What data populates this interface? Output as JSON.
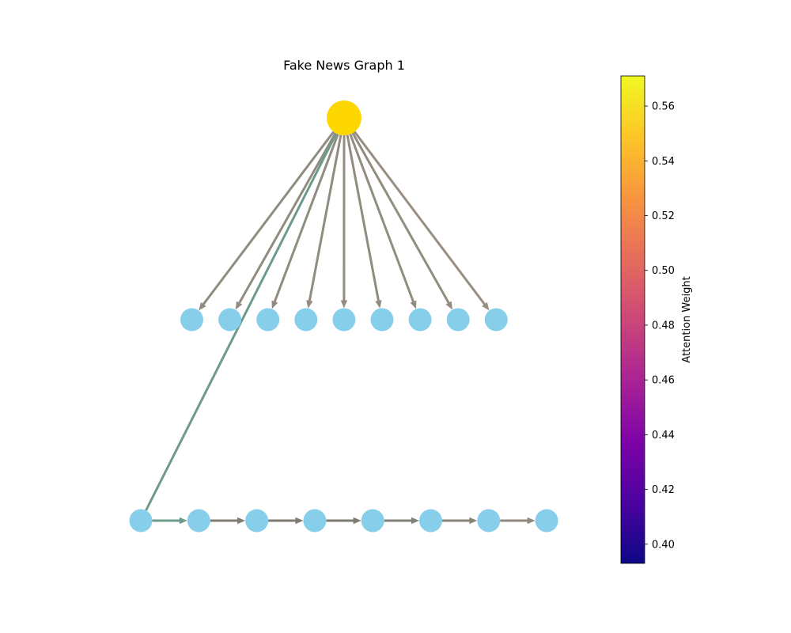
{
  "title": "Fake News Graph 1",
  "colorbar": {
    "label": "Attention Weight",
    "min": 0.393,
    "max": 0.571,
    "ticks": [
      "0.40",
      "0.42",
      "0.44",
      "0.46",
      "0.48",
      "0.50",
      "0.52",
      "0.54",
      "0.56"
    ],
    "tick_values": [
      0.4,
      0.42,
      0.44,
      0.46,
      0.48,
      0.5,
      0.52,
      0.54,
      0.56
    ],
    "colormap": "plasma"
  },
  "colors": {
    "root_node": "#FFD700",
    "child_node": "#87CEEB",
    "edge_gray": "#8c8577",
    "edge_green": "#6c9a8b"
  },
  "graph": {
    "root": "r",
    "middle_nodes": [
      "m1",
      "m2",
      "m3",
      "m4",
      "m5",
      "m6",
      "m7",
      "m8",
      "m9"
    ],
    "chain_nodes": [
      "c1",
      "c2",
      "c3",
      "c4",
      "c5",
      "c6",
      "c7",
      "c8"
    ],
    "edges": [
      {
        "from": "r",
        "to": "m1",
        "color": "#918b80"
      },
      {
        "from": "r",
        "to": "m2",
        "color": "#918b80"
      },
      {
        "from": "r",
        "to": "m3",
        "color": "#928c80"
      },
      {
        "from": "r",
        "to": "m4",
        "color": "#928c80"
      },
      {
        "from": "r",
        "to": "m5",
        "color": "#928c80"
      },
      {
        "from": "r",
        "to": "m6",
        "color": "#928c80"
      },
      {
        "from": "r",
        "to": "m7",
        "color": "#938c80"
      },
      {
        "from": "r",
        "to": "m8",
        "color": "#938c80"
      },
      {
        "from": "r",
        "to": "m9",
        "color": "#988e82"
      },
      {
        "from": "c1",
        "to": "r",
        "color": "#6c9a8b",
        "arrow": false
      },
      {
        "from": "c1",
        "to": "c2",
        "color": "#6c9a8b"
      },
      {
        "from": "c2",
        "to": "c3",
        "color": "#807c72"
      },
      {
        "from": "c3",
        "to": "c4",
        "color": "#7f7b71"
      },
      {
        "from": "c4",
        "to": "c5",
        "color": "#7f7b71"
      },
      {
        "from": "c5",
        "to": "c6",
        "color": "#838075"
      },
      {
        "from": "c6",
        "to": "c7",
        "color": "#878377"
      },
      {
        "from": "c7",
        "to": "c8",
        "color": "#908a7e"
      }
    ]
  }
}
